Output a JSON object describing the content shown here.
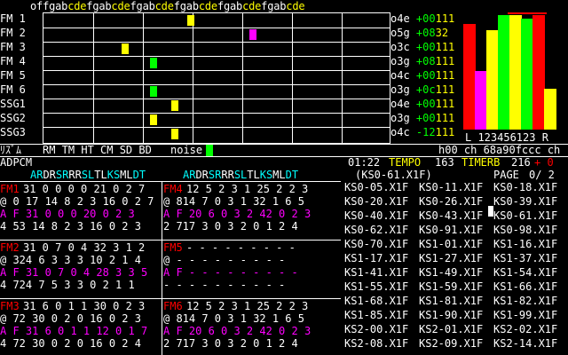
{
  "keyboard_header": "offgabcdefgabcdefgabcdefgabcdefgabcdefgabcde",
  "channels": [
    {
      "label": "FM 1",
      "oct": "o4e",
      "val": "+00",
      "mask": "111"
    },
    {
      "label": "FM 2",
      "oct": "o5g",
      "val": "+08",
      "mask": "32"
    },
    {
      "label": "FM 3",
      "oct": "o3c",
      "val": "+00",
      "mask": "111"
    },
    {
      "label": "FM 4",
      "oct": "o3g",
      "val": "+08",
      "mask": "111"
    },
    {
      "label": "FM 5",
      "oct": "o4c",
      "val": "+00",
      "mask": "111"
    },
    {
      "label": "FM 6",
      "oct": "o3g",
      "val": "+0c",
      "mask": "111"
    },
    {
      "label": "SSG1",
      "oct": "o4e",
      "val": "+00",
      "mask": "111"
    },
    {
      "label": "SSG2",
      "oct": "o3g",
      "val": "+00",
      "mask": "111"
    },
    {
      "label": "SSG3",
      "oct": "o4c",
      "val": "-12",
      "mask": "111"
    }
  ],
  "levels_topbar_color": "#ff0000",
  "level_colors": [
    "#ff0000",
    "#ff00ff",
    "#ffff00",
    "#00ff00",
    "#ffff00",
    "#00ff00",
    "#ff0000",
    "#ffff00"
  ],
  "level_values": [
    0.9,
    0.5,
    0.85,
    0.98,
    0.98,
    0.95,
    0.98,
    0.35
  ],
  "level_labels": "L 123456123 R",
  "rhythm": {
    "label": "ﾘｽﾞﾑ",
    "items": "RM TM HT CM SD BD",
    "active": "noise",
    "extra": "h00 ch 68a90fccc ch"
  },
  "status": {
    "label": "ADPCM",
    "time": "01:22",
    "tempo_label": "TEMPO",
    "tempo": "163",
    "timerb_label": "TIMERB",
    "timerb": "216",
    "flag": "+ 0"
  },
  "op_header": "AR DR SR RR SL TL KS ML DT",
  "op_header_cells": [
    "AR",
    "DR",
    "SR",
    "RR",
    "SL",
    "TL",
    "KS",
    "ML",
    "DT"
  ],
  "fm_panels": [
    {
      "name": "FM1",
      "rows": [
        "31 0 0 0 0 21 0 2 7",
        "@ 0 17 14 8 2 3 16 0 2 7",
        "A F 31 0 0 0 20 0 2 3",
        "4 53 14 8 2 3 16 0 2 3"
      ]
    },
    {
      "name": "FM4",
      "rows": [
        "12 5 2 3 1 25 2 2 3",
        "@ 814 7 0 3 1 32 1 6 5",
        "A F 20 6 0 3 2 42 0 2 3",
        "2 717 3 0 3 2 0 1 2 4"
      ]
    },
    {
      "name": "FM2",
      "rows": [
        "31 0 7 0 4 32 3 1 2",
        "@ 324 6 3 3 3 10 2 1 4",
        "A F 31 0 7 0 4 28 3 3 5",
        "4 724 7 5 3 3 0 2 1 1"
      ]
    },
    {
      "name": "FM5",
      "rows": [
        "- - - - - - - - -",
        "@ - - - - - - - - -",
        "A F - - - - - - - - -",
        "- - - - - - - - - -"
      ]
    },
    {
      "name": "FM3",
      "rows": [
        "31 6 0 1 1 30 0 2 3",
        "@ 72 30 0 2 0 16 0 2 3",
        "A F 31 6 0 1 1 12 0 1 7",
        "4 72 30 0 2 0 16 0 2 4"
      ]
    },
    {
      "name": "FM6",
      "rows": [
        "12 5 2 3 1 25 2 2 3",
        "@ 814 7 0 3 1 32 1 6 5",
        "A F 20 6 0 3 2 42 0 2 3",
        "2 717 3 0 3 2 0 1 2 4"
      ]
    }
  ],
  "file_header": "(KS0-61.X1F)",
  "page_label": "PAGE",
  "page_value": "0/ 2",
  "files": [
    [
      "KS0-05.X1F",
      "KS0-11.X1F",
      "KS0-18.X1F"
    ],
    [
      "KS0-20.X1F",
      "KS0-26.X1F",
      "KS0-39.X1F"
    ],
    [
      "KS0-40.X1F",
      "KS0-43.X1F",
      "KS0-61.X1F"
    ],
    [
      "KS0-62.X1F",
      "KS0-91.X1F",
      "KS0-98.X1F"
    ],
    [
      "KS0-70.X1F",
      "KS1-01.X1F",
      "KS1-16.X1F"
    ],
    [
      "KS1-17.X1F",
      "KS1-27.X1F",
      "KS1-37.X1F"
    ],
    [
      "KS1-41.X1F",
      "KS1-49.X1F",
      "KS1-54.X1F"
    ],
    [
      "KS1-55.X1F",
      "KS1-59.X1F",
      "KS1-66.X1F"
    ],
    [
      "KS1-68.X1F",
      "KS1-81.X1F",
      "KS1-82.X1F"
    ],
    [
      "KS1-85.X1F",
      "KS1-90.X1F",
      "KS1-99.X1F"
    ],
    [
      "KS2-00.X1F",
      "KS2-01.X1F",
      "KS2-02.X1F"
    ],
    [
      "KS2-08.X1F",
      "KS2-09.X1F",
      "KS2-14.X1F"
    ]
  ]
}
